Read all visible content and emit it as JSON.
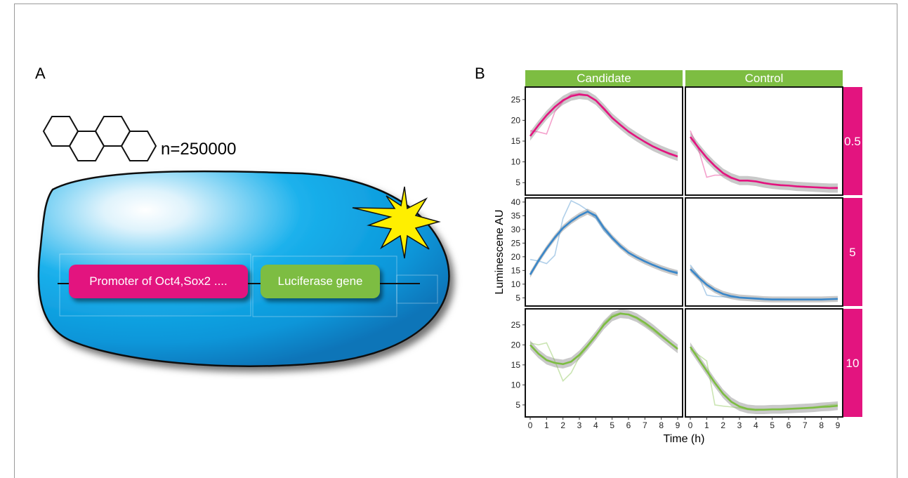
{
  "figure": {
    "panel_a_label": "A",
    "panel_b_label": "B",
    "cell_count": "n=250000",
    "promoter_label": "Promoter of Oct4,Sox2 ....",
    "luciferase_label": "Luciferase gene"
  },
  "colors": {
    "pink": "#e3147f",
    "green": "#7dbd42",
    "blue": "#3a87c9",
    "cell_blue": "#0a9fe3",
    "star_yellow": "#ffef00"
  },
  "chart_data": {
    "type": "line",
    "facet_columns": [
      "Candidate",
      "Control"
    ],
    "facet_rows": [
      "0.5",
      "5",
      "10"
    ],
    "xlabel": "Time (h)",
    "ylabel": "Luminescene AU",
    "xlim": [
      -0.3,
      9.3
    ],
    "x_ticks": [
      0,
      1,
      2,
      3,
      4,
      5,
      6,
      7,
      8,
      9
    ],
    "rows": [
      {
        "name": "0.5",
        "color": "#e3147f",
        "ylim": [
          2,
          28
        ],
        "y_ticks": [
          5,
          10,
          15,
          20,
          25
        ],
        "panels": [
          {
            "column": "Candidate",
            "raw": {
              "x": [
                0,
                0.5,
                1,
                1.5,
                2,
                2.5,
                3,
                3.5,
                4,
                4.5,
                5,
                5.5,
                6,
                6.5,
                7,
                7.5,
                8,
                8.5,
                9
              ],
              "y": [
                17.5,
                17.2,
                16.7,
                22,
                24.5,
                26.2,
                26.5,
                26,
                24.8,
                22.5,
                20.5,
                18.8,
                17.3,
                16,
                14.8,
                13.7,
                12.7,
                11.8,
                11.2
              ]
            },
            "smooth": {
              "x": [
                0,
                0.5,
                1,
                1.5,
                2,
                2.5,
                3,
                3.5,
                4,
                4.5,
                5,
                5.5,
                6,
                6.5,
                7,
                7.5,
                8,
                8.5,
                9
              ],
              "y": [
                16.2,
                18.8,
                21.2,
                23.2,
                24.8,
                25.8,
                26.2,
                26,
                24.8,
                22.8,
                20.6,
                18.9,
                17.3,
                16,
                14.8,
                13.7,
                12.8,
                12,
                11.3
              ]
            }
          },
          {
            "column": "Control",
            "raw": {
              "x": [
                0,
                0.5,
                1,
                1.5,
                2,
                2.5,
                3,
                3.5,
                4,
                4.5,
                5,
                5.5,
                6,
                6.5,
                7,
                7.5,
                8,
                8.5,
                9
              ],
              "y": [
                17.5,
                13,
                6.3,
                6.8,
                6.8,
                6,
                5.6,
                5.6,
                5.3,
                5,
                4.7,
                4.5,
                4.3,
                4.2,
                4.1,
                4,
                3.9,
                3.8,
                3.9
              ]
            },
            "smooth": {
              "x": [
                0,
                0.5,
                1,
                1.5,
                2,
                2.5,
                3,
                3.5,
                4,
                4.5,
                5,
                5.5,
                6,
                6.5,
                7,
                7.5,
                8,
                8.5,
                9
              ],
              "y": [
                16,
                13.4,
                11,
                9,
                7.3,
                6.2,
                5.5,
                5.5,
                5.3,
                4.9,
                4.6,
                4.4,
                4.3,
                4.1,
                4,
                3.9,
                3.8,
                3.7,
                3.7
              ]
            }
          }
        ]
      },
      {
        "name": "5",
        "color": "#3a87c9",
        "ylim": [
          2,
          41.5
        ],
        "y_ticks": [
          5,
          10,
          15,
          20,
          25,
          30,
          35,
          40
        ],
        "panels": [
          {
            "column": "Candidate",
            "raw": {
              "x": [
                0,
                0.5,
                1,
                1.5,
                2,
                2.5,
                3,
                3.5,
                4,
                4.5,
                5,
                5.5,
                6,
                6.5,
                7,
                7.5,
                8,
                8.5,
                9
              ],
              "y": [
                19,
                18.5,
                17.5,
                20.5,
                34,
                40.5,
                39,
                37,
                34,
                29.5,
                26.5,
                23.5,
                21.5,
                20,
                18.5,
                17,
                16,
                15,
                14.5
              ]
            },
            "smooth": {
              "x": [
                0,
                0.5,
                1,
                1.5,
                2,
                2.5,
                3,
                3.5,
                4,
                4.5,
                5,
                5.5,
                6,
                6.5,
                7,
                7.5,
                8,
                8.5,
                9
              ],
              "y": [
                13.5,
                18.5,
                23,
                27,
                30.5,
                33,
                35,
                36.5,
                35,
                30.5,
                27,
                24,
                21.5,
                19.8,
                18.3,
                17,
                15.8,
                14.8,
                14
              ]
            }
          },
          {
            "column": "Control",
            "raw": {
              "x": [
                0,
                0.5,
                1,
                1.5,
                2,
                2.5,
                3,
                3.5,
                4,
                4.5,
                5,
                5.5,
                6,
                6.5,
                7,
                7.5,
                8,
                8.5,
                9
              ],
              "y": [
                17,
                13,
                6,
                5.5,
                5.4,
                5.2,
                5.1,
                5,
                4.9,
                4.7,
                4.6,
                4.6,
                4.5,
                4.5,
                4.5,
                4.5,
                4.5,
                4.6,
                4.7
              ]
            },
            "smooth": {
              "x": [
                0,
                0.5,
                1,
                1.5,
                2,
                2.5,
                3,
                3.5,
                4,
                4.5,
                5,
                5.5,
                6,
                6.5,
                7,
                7.5,
                8,
                8.5,
                9
              ],
              "y": [
                15.5,
                12.5,
                9.8,
                7.8,
                6.4,
                5.6,
                5.1,
                4.9,
                4.7,
                4.5,
                4.4,
                4.4,
                4.4,
                4.4,
                4.4,
                4.4,
                4.4,
                4.5,
                4.6
              ]
            }
          }
        ]
      },
      {
        "name": "10",
        "color": "#7dbd42",
        "ylim": [
          2,
          29
        ],
        "y_ticks": [
          5,
          10,
          15,
          20,
          25
        ],
        "panels": [
          {
            "column": "Candidate",
            "raw": {
              "x": [
                0,
                0.5,
                1,
                1.5,
                2,
                2.5,
                3,
                3.5,
                4,
                4.5,
                5,
                5.5,
                6,
                6.5,
                7,
                7.5,
                8,
                8.5,
                9
              ],
              "y": [
                20.5,
                20,
                20.5,
                16,
                11,
                13,
                17,
                19.5,
                22,
                25.5,
                27.5,
                28,
                27.5,
                26.5,
                25,
                23.5,
                22,
                20.5,
                18.8
              ]
            },
            "smooth": {
              "x": [
                0,
                0.5,
                1,
                1.5,
                2,
                2.5,
                3,
                3.5,
                4,
                4.5,
                5,
                5.5,
                6,
                6.5,
                7,
                7.5,
                8,
                8.5,
                9
              ],
              "y": [
                20,
                17.8,
                16.2,
                15.5,
                15.2,
                15.8,
                17.5,
                19.8,
                22.3,
                25,
                27,
                27.8,
                27.6,
                26.8,
                25.5,
                24,
                22.3,
                20.6,
                19
              ]
            }
          },
          {
            "column": "Control",
            "raw": {
              "x": [
                0,
                0.5,
                1,
                1.5,
                2,
                2.5,
                3,
                3.5,
                4,
                4.5,
                5,
                5.5,
                6,
                6.5,
                7,
                7.5,
                8,
                8.5,
                9
              ],
              "y": [
                19,
                17.5,
                16,
                5,
                4.7,
                4.5,
                4.2,
                3.8,
                3.6,
                3.8,
                3.9,
                4,
                4.1,
                4.2,
                4.3,
                4.5,
                4.7,
                5,
                5.2
              ]
            },
            "smooth": {
              "x": [
                0,
                0.5,
                1,
                1.5,
                2,
                2.5,
                3,
                3.5,
                4,
                4.5,
                5,
                5.5,
                6,
                6.5,
                7,
                7.5,
                8,
                8.5,
                9
              ],
              "y": [
                19.5,
                16.5,
                13.5,
                10.5,
                7.8,
                5.8,
                4.6,
                4,
                3.8,
                3.8,
                3.9,
                3.9,
                4,
                4.1,
                4.2,
                4.3,
                4.5,
                4.6,
                4.8
              ]
            }
          }
        ]
      }
    ]
  }
}
